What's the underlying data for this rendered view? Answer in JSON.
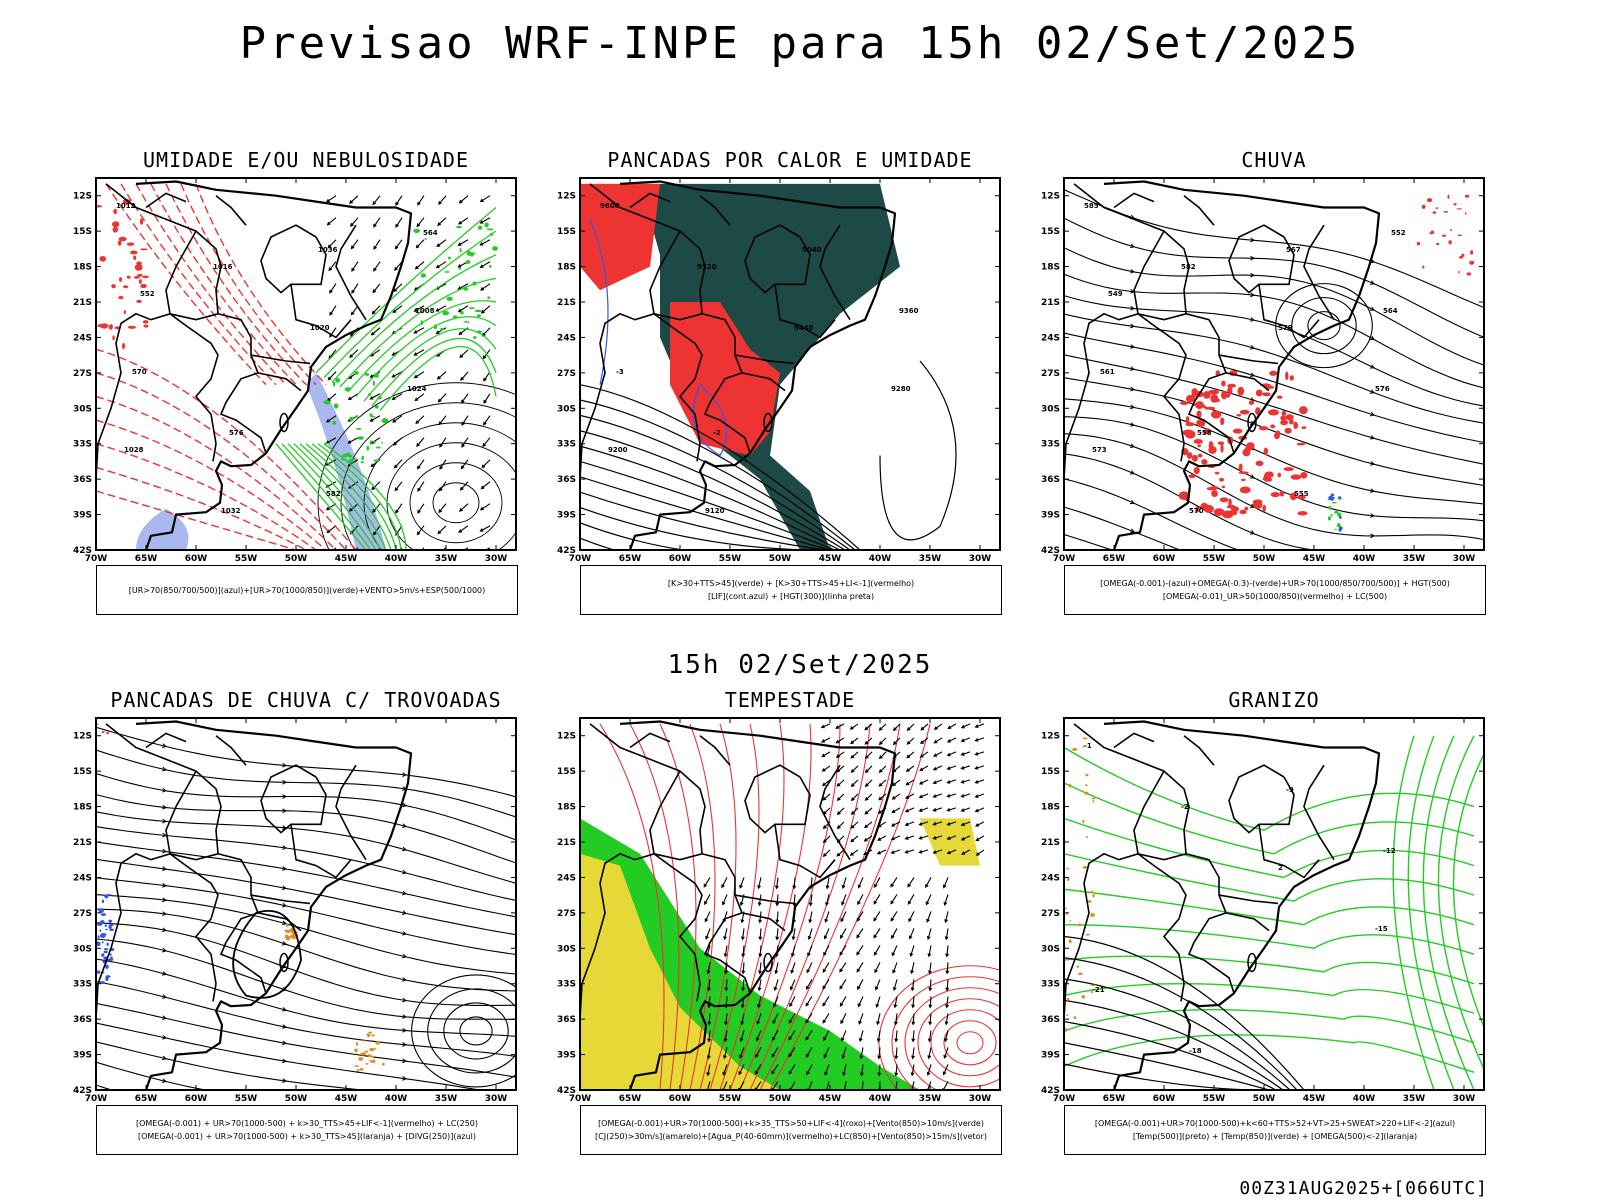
{
  "title": "Previsao WRF-INPE  para 15h 02/Set/2025",
  "subtitle": "15h 02/Set/2025",
  "footer": "00Z31AUG2025+[066UTC]",
  "axes": {
    "lat_labels": [
      "12S",
      "15S",
      "18S",
      "21S",
      "24S",
      "27S",
      "30S",
      "33S",
      "36S",
      "39S",
      "42S"
    ],
    "lon_labels": [
      "70W",
      "65W",
      "60W",
      "55W",
      "50W",
      "45W",
      "40W",
      "35W",
      "30W"
    ]
  },
  "colors": {
    "blue": "#3355ee",
    "green": "#22cc22",
    "red": "#ee3333",
    "yellow": "#e6d836",
    "orange": "#e88a22",
    "darkteal": "#1d4a47",
    "lightblue": "#aab8f0"
  },
  "panels": [
    {
      "title": "UMIDADE E/OU NEBULOSIDADE",
      "legend": [
        "[UR>70(850/700/500)](azul)+[UR>70(1000/850)](verde)+VENTO>5m/s+ESP(500/1000)"
      ],
      "contour_labels": [
        "1012",
        "1016",
        "1020",
        "1024",
        "1028",
        "1032",
        "1036",
        "1008",
        "570",
        "576",
        "582",
        "564",
        "552"
      ]
    },
    {
      "title": "PANCADAS POR CALOR E UMIDADE",
      "legend": [
        "[K>30+TTS>45](verde) + [K>30+TTS>45+LI<-1](vermelho)",
        "[LIF](cont.azul) + [HGT(300)](linha preta)"
      ],
      "contour_labels": [
        "9600",
        "9520",
        "9440",
        "9280",
        "9200",
        "9120",
        "9040",
        "9360",
        "-3",
        "-2"
      ]
    },
    {
      "title": "CHUVA",
      "legend": [
        "[OMEGA(-0.001)-(azul)+OMEGA(-0.3)-(verde)+UR>70(1000/850/700/500)] + HGT(500)",
        "[OMEGA(-0.01)_UR>50(1000/850)(vermelho) + LC(500)"
      ],
      "contour_labels": [
        "585",
        "582",
        "579",
        "576",
        "573",
        "570",
        "567",
        "564",
        "561",
        "558",
        "555",
        "552",
        "549"
      ]
    },
    {
      "title": "PANCADAS DE CHUVA C/ TROVOADAS",
      "legend": [
        "[OMEGA(-0.001) + UR>70(1000-500) + k>30_TTS>45+LIF<-1](vermelho) + LC(250)",
        "[OMEGA(-0.001) + UR>70(1000-500) + k>30_TTS>45](laranja) + [DIVG(250)](azul)"
      ],
      "contour_labels": []
    },
    {
      "title": "TEMPESTADE",
      "legend": [
        "[OMEGA(-0.001)+UR>70(1000-500)+k>35_TTS>50+LIF<-4](roxo)+[Vento(850)>10m/s](verde)",
        "[CJ(250)>30m/s](amarelo)+[Agua_P(40-60mm)](vermelho)+LC(850)+[Vento(850)>15m/s](vetor)"
      ],
      "contour_labels": []
    },
    {
      "title": "GRANIZO",
      "legend": [
        "[OMEGA(-0.001)+UR>70(1000-500)+k<60+TTS>52+VT>25+SWEAT>220+LIF<-2](azul)",
        "[Temp(500)](preto) + [Temp(850)](verde) + [OMEGA(500)<-2](laranja)"
      ],
      "contour_labels": [
        "-1",
        "-2",
        "2",
        "-15",
        "-21",
        "-18",
        "-9",
        "-12"
      ]
    }
  ]
}
